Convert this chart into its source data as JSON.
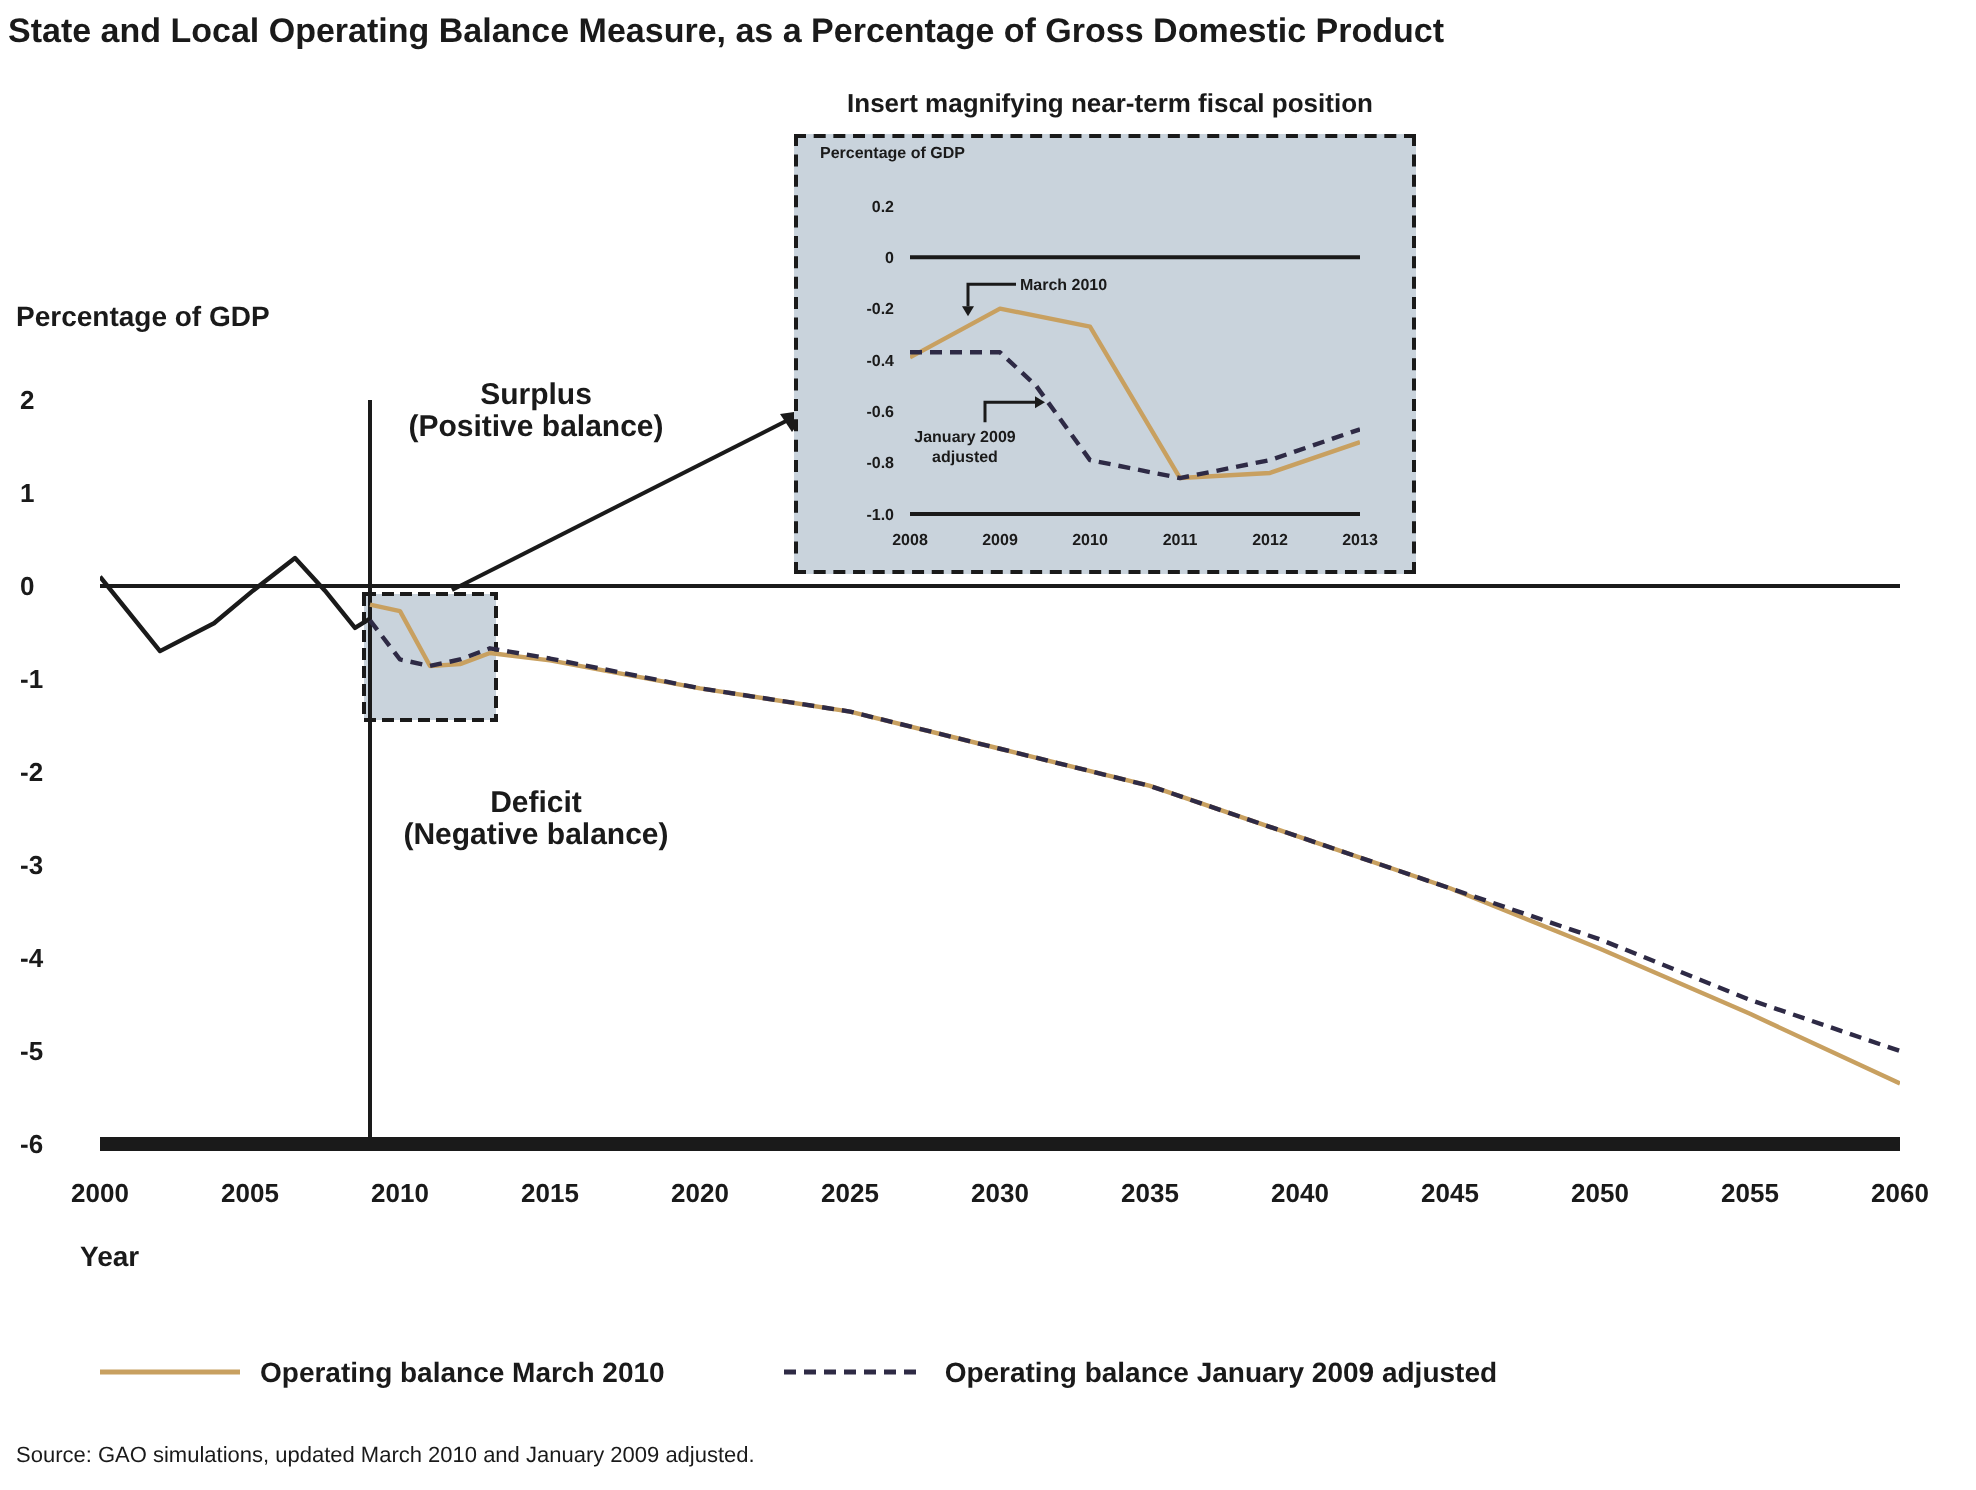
{
  "chart_data": [
    {
      "type": "line",
      "title": "State and Local Operating Balance Measure, as a Percentage of Gross Domestic Product",
      "xlabel": "Year",
      "ylabel": "Percentage of GDP",
      "xlim": [
        2000,
        2060
      ],
      "xticks": [
        2000,
        2005,
        2010,
        2015,
        2020,
        2025,
        2030,
        2035,
        2040,
        2045,
        2050,
        2055,
        2060
      ],
      "ylim": [
        -6,
        2
      ],
      "yticks": [
        -6,
        -5,
        -4,
        -3,
        -2,
        -1,
        0,
        1,
        2
      ],
      "legend": "bottom",
      "series": [
        {
          "color": "#1a1a1a",
          "line_style": "solid",
          "x": [
            2000,
            2002,
            2003.8,
            2005.1,
            2006.5,
            2007.5,
            2008.5,
            2009
          ],
          "values": [
            0.1,
            -0.7,
            -0.4,
            -0.05,
            0.3,
            -0.05,
            -0.45,
            -0.35
          ]
        },
        {
          "name": "Operating balance March 2010",
          "color": "#c8a060",
          "line_style": "solid",
          "x": [
            2009,
            2010,
            2011,
            2012,
            2013,
            2015,
            2020,
            2025,
            2030,
            2035,
            2040,
            2045,
            2050,
            2055,
            2060
          ],
          "values": [
            -0.2,
            -0.27,
            -0.86,
            -0.84,
            -0.72,
            -0.8,
            -1.1,
            -1.35,
            -1.75,
            -2.15,
            -2.7,
            -3.25,
            -3.9,
            -4.6,
            -5.35
          ]
        },
        {
          "name": "Operating balance January 2009 adjusted",
          "color": "#2e2a45",
          "line_style": "dashed",
          "x": [
            2009,
            2010,
            2011,
            2012,
            2013,
            2015,
            2020,
            2025,
            2030,
            2035,
            2040,
            2045,
            2050,
            2055,
            2060
          ],
          "values": [
            -0.37,
            -0.79,
            -0.86,
            -0.79,
            -0.67,
            -0.78,
            -1.1,
            -1.35,
            -1.75,
            -2.15,
            -2.7,
            -3.25,
            -3.8,
            -4.45,
            -5.0
          ]
        }
      ],
      "ref_lines": [
        {
          "axis": "y",
          "value": 0,
          "color": "#1a1a1a"
        },
        {
          "axis": "x",
          "value": 2009,
          "color": "#1a1a1a"
        }
      ],
      "annotations": [
        "Surplus\n(Positive balance)",
        "Deficit\n(Negative balance)",
        "Source: GAO simulations, updated March 2010 and January 2009 adjusted."
      ]
    },
    {
      "type": "line",
      "title": "Insert magnifying near-term fiscal position",
      "ylabel": "Percentage of GDP",
      "xlim": [
        2008,
        2013
      ],
      "xticks": [
        2008,
        2009,
        2010,
        2011,
        2012,
        2013
      ],
      "ylim": [
        -1,
        0.2
      ],
      "yticks": [
        {
          "value": -1,
          "label": "-1.0"
        },
        -0.8,
        -0.6,
        -0.4,
        -0.2,
        0,
        0.2
      ],
      "series": [
        {
          "color": "#c8a060",
          "line_style": "solid",
          "x": [
            2008,
            2009,
            2010,
            2011,
            2012,
            2013
          ],
          "values": [
            -0.39,
            -0.2,
            -0.27,
            -0.86,
            -0.84,
            -0.72
          ]
        },
        {
          "color": "#2e2a45",
          "line_style": "dashed",
          "x": [
            2008,
            2009,
            2009.4,
            2010,
            2011,
            2012,
            2013
          ],
          "values": [
            -0.37,
            -0.37,
            -0.5,
            -0.79,
            -0.86,
            -0.79,
            -0.67
          ]
        }
      ],
      "ref_lines": [
        {
          "axis": "y",
          "value": 0,
          "color": "#1a1a1a"
        }
      ],
      "annotations": [
        "March 2010",
        "January 2009\nadjusted"
      ]
    }
  ]
}
